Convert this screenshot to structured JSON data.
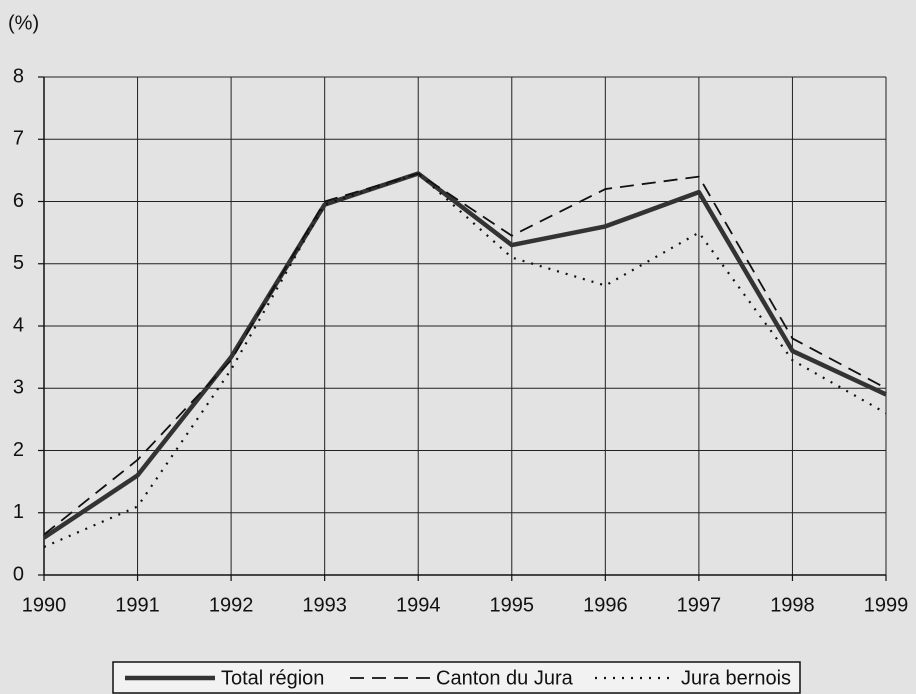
{
  "chart_data": {
    "type": "line",
    "y_label": "(%)",
    "x": [
      1990,
      1991,
      1992,
      1993,
      1994,
      1995,
      1996,
      1997,
      1998,
      1999
    ],
    "xlim": [
      1990,
      1999
    ],
    "xticks": [
      1990,
      1991,
      1992,
      1993,
      1994,
      1995,
      1996,
      1997,
      1998,
      1999
    ],
    "ylim": [
      0,
      8
    ],
    "yticks": [
      0,
      1,
      2,
      3,
      4,
      5,
      6,
      7,
      8
    ],
    "grid": true,
    "legend": "bottom",
    "series": [
      {
        "name": "Total région",
        "color": "#333333",
        "style": "solid",
        "values": [
          0.6,
          1.6,
          3.5,
          5.95,
          6.45,
          5.3,
          5.6,
          6.15,
          3.6,
          2.9
        ]
      },
      {
        "name": "Canton du Jura",
        "color": "#111111",
        "style": "dashed",
        "values": [
          0.65,
          1.85,
          3.45,
          6.0,
          6.45,
          5.45,
          6.2,
          6.4,
          3.8,
          3.0
        ]
      },
      {
        "name": "Jura bernois",
        "color": "#111111",
        "style": "dotted",
        "values": [
          0.45,
          1.1,
          3.3,
          5.95,
          6.45,
          5.1,
          4.65,
          5.5,
          3.45,
          2.6
        ]
      }
    ]
  }
}
